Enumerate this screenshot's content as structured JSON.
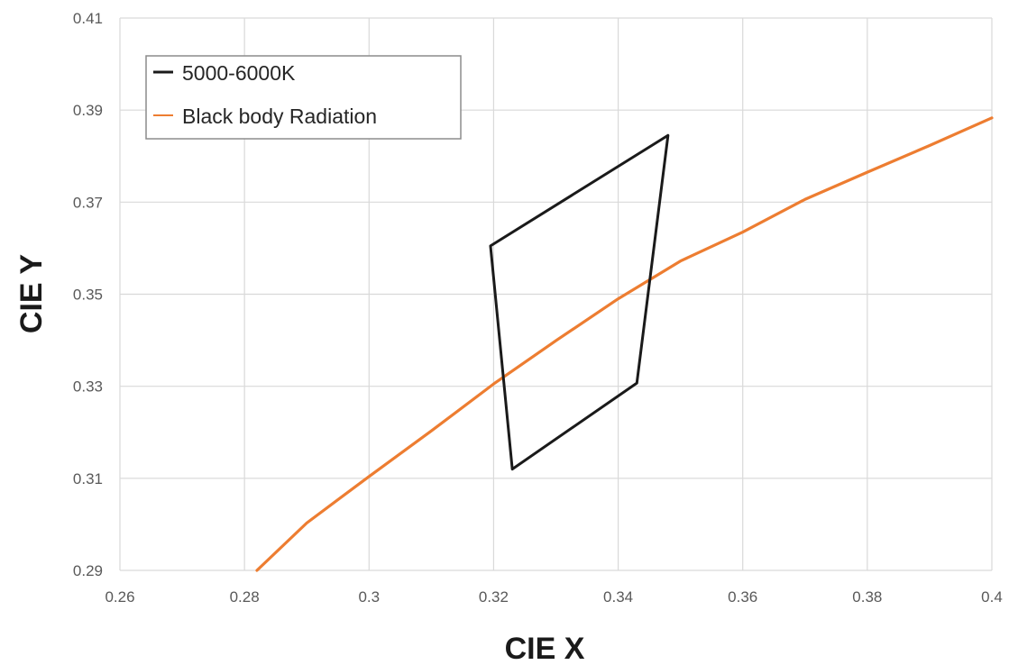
{
  "chart_data": {
    "type": "line",
    "xlabel": "CIE X",
    "ylabel": "CIE Y",
    "xlim": [
      0.26,
      0.4
    ],
    "ylim": [
      0.29,
      0.41
    ],
    "x_ticks": [
      "0.26",
      "0.28",
      "0.3",
      "0.32",
      "0.34",
      "0.36",
      "0.38",
      "0.4"
    ],
    "y_ticks": [
      "0.29",
      "0.31",
      "0.33",
      "0.35",
      "0.37",
      "0.39",
      "0.41"
    ],
    "grid": true,
    "legend_position": "top-left",
    "series": [
      {
        "name": "5000-6000K",
        "color": "#1a1a1a",
        "closed": true,
        "points": [
          {
            "x": 0.3195,
            "y": 0.3605
          },
          {
            "x": 0.348,
            "y": 0.3845
          },
          {
            "x": 0.343,
            "y": 0.3307
          },
          {
            "x": 0.323,
            "y": 0.312
          }
        ]
      },
      {
        "name": "Black body Radiation",
        "color": "#ed7d31",
        "closed": false,
        "points": [
          {
            "x": 0.282,
            "y": 0.29
          },
          {
            "x": 0.29,
            "y": 0.3003
          },
          {
            "x": 0.3,
            "y": 0.3104
          },
          {
            "x": 0.31,
            "y": 0.3203
          },
          {
            "x": 0.32,
            "y": 0.3305
          },
          {
            "x": 0.33,
            "y": 0.3399
          },
          {
            "x": 0.34,
            "y": 0.349
          },
          {
            "x": 0.35,
            "y": 0.3572
          },
          {
            "x": 0.36,
            "y": 0.3635
          },
          {
            "x": 0.37,
            "y": 0.3706
          },
          {
            "x": 0.38,
            "y": 0.3765
          },
          {
            "x": 0.39,
            "y": 0.3823
          },
          {
            "x": 0.4,
            "y": 0.3883
          }
        ]
      }
    ]
  }
}
